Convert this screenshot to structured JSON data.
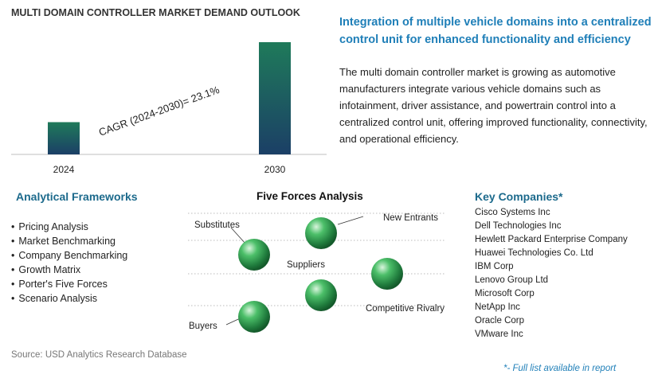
{
  "chart_title": "MULTI DOMAIN CONTROLLER MARKET DEMAND OUTLOOK",
  "chart_data": {
    "type": "bar",
    "categories": [
      "2024",
      "2030"
    ],
    "values": [
      1,
      3.48
    ],
    "annotation": "CAGR (2024-2030)=   23.1%",
    "colors": {
      "bar_top": "#1f7a5a",
      "bar_bottom": "#1b3f66"
    }
  },
  "headline": "Integration of multiple vehicle domains into a centralized control unit for enhanced functionality and efficiency",
  "description": "The multi domain controller market is growing as automotive manufacturers integrate various vehicle domains such as infotainment, driver assistance, and powertrain control into a centralized control unit, offering improved functionality, connectivity, and operational efficiency.",
  "frameworks": {
    "title": "Analytical Frameworks",
    "items": [
      "Pricing Analysis",
      "Market Benchmarking",
      "Company Benchmarking",
      "Growth Matrix",
      "Porter's Five Forces",
      "Scenario Analysis"
    ]
  },
  "five_forces": {
    "title": "Five Forces Analysis",
    "labels": {
      "substitutes": "Substitutes",
      "new_entrants": "New Entrants",
      "suppliers": "Suppliers",
      "competitive_rivalry": "Competitive Rivalry",
      "buyers": "Buyers"
    },
    "sphere_color": "#2e9a4f"
  },
  "companies": {
    "title": "Key Companies*",
    "items": [
      "Cisco Systems Inc",
      "Dell Technologies Inc",
      "Hewlett Packard Enterprise Company",
      "Huawei Technologies Co. Ltd",
      "IBM Corp",
      "Lenovo Group Ltd",
      "Microsoft Corp",
      "NetApp Inc",
      "Oracle Corp",
      "VMware Inc"
    ]
  },
  "source": "Source: USD Analytics Research Database",
  "footnote": "*- Full list available in report"
}
